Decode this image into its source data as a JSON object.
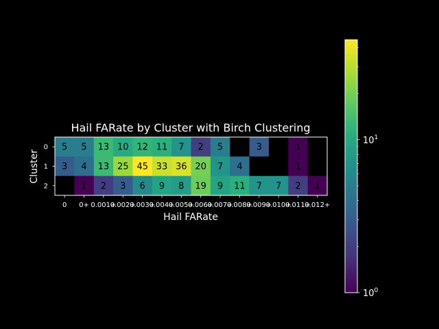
{
  "chart_data": {
    "type": "heatmap",
    "title": "Hail FARate by Cluster with Birch Clustering",
    "xlabel": "Hail FARate",
    "ylabel": "Cluster",
    "x_categories": [
      "0",
      "0+",
      "0.001+",
      "0.002+",
      "0.003+",
      "0.004+",
      "0.005+",
      "0.006+",
      "0.007+",
      "0.008+",
      "0.009+",
      "0.010+",
      "0.011+",
      "0.012+"
    ],
    "y_categories": [
      "0",
      "1",
      "2"
    ],
    "values": [
      [
        5,
        5,
        13,
        10,
        12,
        11,
        7,
        2,
        5,
        null,
        3,
        null,
        1,
        null
      ],
      [
        3,
        4,
        13,
        25,
        45,
        33,
        36,
        20,
        7,
        4,
        null,
        null,
        1,
        null
      ],
      [
        null,
        1,
        2,
        3,
        6,
        9,
        8,
        19,
        9,
        11,
        7,
        7,
        2,
        1
      ]
    ],
    "colormap": "viridis",
    "color_scale": "log",
    "colorbar_range": [
      1,
      45
    ],
    "colorbar_ticks": [
      "10^0",
      "10^1"
    ],
    "empty_cell_color": "#000000"
  }
}
